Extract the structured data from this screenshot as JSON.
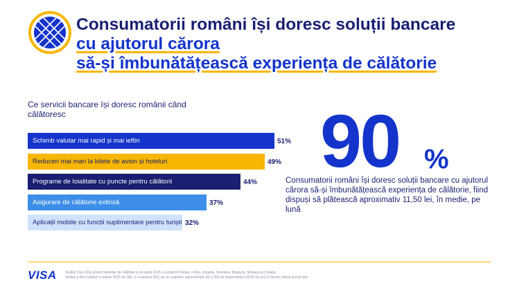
{
  "header": {
    "title_line1": "Consumatorii români își doresc soluții bancare",
    "title_line2": "cu ajutorul cărora",
    "title_line3": "să-și îmbunătățească experiența de călătorie"
  },
  "stat": {
    "value": "90",
    "symbol": "%",
    "description": "Consumatorii români își doresc soluții bancare cu ajutorul cărora să-și îmbunătățească experiența de călătorie, fiind dispuși să plătească aproximativ 11,50 lei, în medie, pe lună"
  },
  "chart_data": {
    "type": "bar",
    "orientation": "horizontal",
    "title": "Ce servicii bancare își doresc românii când călătoresc",
    "categories": [
      "Schimb valutar mai rapid și mai ieftin",
      "Reduceri mai mari la bilete de avion și hoteluri",
      "Programe de loialitate cu puncte pentru călătorii",
      "Asigurare de călătorie extinsă",
      "Aplicații mobile cu funcții suplimentare pentru turiști"
    ],
    "values": [
      51,
      49,
      44,
      37,
      32
    ],
    "value_labels": [
      "51%",
      "49%",
      "44%",
      "37%",
      "32%"
    ],
    "colors": [
      "#1434cb",
      "#f7b600",
      "#1a1f71",
      "#3d8ee8",
      "#cfe2fb"
    ],
    "label_colors": [
      "#ffffff",
      "#1a1f71",
      "#ffffff",
      "#ffffff",
      "#1a1f71"
    ],
    "xlim": [
      0,
      51
    ],
    "grid": false
  },
  "footer": {
    "brand": "VISA",
    "note_line1": "Studiul Visa CEE privind intențiile de călătorie și de plată 2025 a acoperit Polonia, Cehia, Ungaria, România, Bulgaria, Slovacia și Croația.",
    "note_line2": "Studiul a fost realizat în martie 2025 de GfK, o companie NIQ, pe un eșantion reprezentativ de 1 000 de respondenți (18-65 de ani) în fiecare dintre aceste țări."
  },
  "colors": {
    "navy": "#1a1f71",
    "blue": "#1434cb",
    "gold": "#f7b600"
  },
  "icons": {
    "logo": "globe-grid-icon"
  }
}
